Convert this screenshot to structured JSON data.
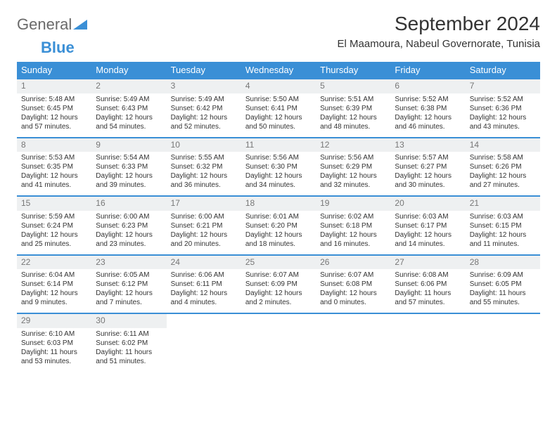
{
  "brand": {
    "name_part1": "General",
    "name_part2": "Blue",
    "logo_color": "#3a8fd6",
    "text_color": "#6a6a6a"
  },
  "title": "September 2024",
  "location": "El Maamoura, Nabeul Governorate, Tunisia",
  "weekdays": [
    "Sunday",
    "Monday",
    "Tuesday",
    "Wednesday",
    "Thursday",
    "Friday",
    "Saturday"
  ],
  "colors": {
    "header_bg": "#3a8fd6",
    "row_border": "#3a8fd6",
    "daynum_bg": "#eef0f1",
    "daynum_color": "#777777",
    "body_text": "#333333",
    "page_bg": "#ffffff"
  },
  "fonts": {
    "month_title_pt": 28,
    "location_pt": 15,
    "weekday_pt": 13,
    "daynum_pt": 12,
    "cell_pt": 10
  },
  "days": [
    {
      "n": "1",
      "sunrise": "5:48 AM",
      "sunset": "6:45 PM",
      "daylight": "12 hours and 57 minutes."
    },
    {
      "n": "2",
      "sunrise": "5:49 AM",
      "sunset": "6:43 PM",
      "daylight": "12 hours and 54 minutes."
    },
    {
      "n": "3",
      "sunrise": "5:49 AM",
      "sunset": "6:42 PM",
      "daylight": "12 hours and 52 minutes."
    },
    {
      "n": "4",
      "sunrise": "5:50 AM",
      "sunset": "6:41 PM",
      "daylight": "12 hours and 50 minutes."
    },
    {
      "n": "5",
      "sunrise": "5:51 AM",
      "sunset": "6:39 PM",
      "daylight": "12 hours and 48 minutes."
    },
    {
      "n": "6",
      "sunrise": "5:52 AM",
      "sunset": "6:38 PM",
      "daylight": "12 hours and 46 minutes."
    },
    {
      "n": "7",
      "sunrise": "5:52 AM",
      "sunset": "6:36 PM",
      "daylight": "12 hours and 43 minutes."
    },
    {
      "n": "8",
      "sunrise": "5:53 AM",
      "sunset": "6:35 PM",
      "daylight": "12 hours and 41 minutes."
    },
    {
      "n": "9",
      "sunrise": "5:54 AM",
      "sunset": "6:33 PM",
      "daylight": "12 hours and 39 minutes."
    },
    {
      "n": "10",
      "sunrise": "5:55 AM",
      "sunset": "6:32 PM",
      "daylight": "12 hours and 36 minutes."
    },
    {
      "n": "11",
      "sunrise": "5:56 AM",
      "sunset": "6:30 PM",
      "daylight": "12 hours and 34 minutes."
    },
    {
      "n": "12",
      "sunrise": "5:56 AM",
      "sunset": "6:29 PM",
      "daylight": "12 hours and 32 minutes."
    },
    {
      "n": "13",
      "sunrise": "5:57 AM",
      "sunset": "6:27 PM",
      "daylight": "12 hours and 30 minutes."
    },
    {
      "n": "14",
      "sunrise": "5:58 AM",
      "sunset": "6:26 PM",
      "daylight": "12 hours and 27 minutes."
    },
    {
      "n": "15",
      "sunrise": "5:59 AM",
      "sunset": "6:24 PM",
      "daylight": "12 hours and 25 minutes."
    },
    {
      "n": "16",
      "sunrise": "6:00 AM",
      "sunset": "6:23 PM",
      "daylight": "12 hours and 23 minutes."
    },
    {
      "n": "17",
      "sunrise": "6:00 AM",
      "sunset": "6:21 PM",
      "daylight": "12 hours and 20 minutes."
    },
    {
      "n": "18",
      "sunrise": "6:01 AM",
      "sunset": "6:20 PM",
      "daylight": "12 hours and 18 minutes."
    },
    {
      "n": "19",
      "sunrise": "6:02 AM",
      "sunset": "6:18 PM",
      "daylight": "12 hours and 16 minutes."
    },
    {
      "n": "20",
      "sunrise": "6:03 AM",
      "sunset": "6:17 PM",
      "daylight": "12 hours and 14 minutes."
    },
    {
      "n": "21",
      "sunrise": "6:03 AM",
      "sunset": "6:15 PM",
      "daylight": "12 hours and 11 minutes."
    },
    {
      "n": "22",
      "sunrise": "6:04 AM",
      "sunset": "6:14 PM",
      "daylight": "12 hours and 9 minutes."
    },
    {
      "n": "23",
      "sunrise": "6:05 AM",
      "sunset": "6:12 PM",
      "daylight": "12 hours and 7 minutes."
    },
    {
      "n": "24",
      "sunrise": "6:06 AM",
      "sunset": "6:11 PM",
      "daylight": "12 hours and 4 minutes."
    },
    {
      "n": "25",
      "sunrise": "6:07 AM",
      "sunset": "6:09 PM",
      "daylight": "12 hours and 2 minutes."
    },
    {
      "n": "26",
      "sunrise": "6:07 AM",
      "sunset": "6:08 PM",
      "daylight": "12 hours and 0 minutes."
    },
    {
      "n": "27",
      "sunrise": "6:08 AM",
      "sunset": "6:06 PM",
      "daylight": "11 hours and 57 minutes."
    },
    {
      "n": "28",
      "sunrise": "6:09 AM",
      "sunset": "6:05 PM",
      "daylight": "11 hours and 55 minutes."
    },
    {
      "n": "29",
      "sunrise": "6:10 AM",
      "sunset": "6:03 PM",
      "daylight": "11 hours and 53 minutes."
    },
    {
      "n": "30",
      "sunrise": "6:11 AM",
      "sunset": "6:02 PM",
      "daylight": "11 hours and 51 minutes."
    }
  ],
  "labels": {
    "sunrise": "Sunrise:",
    "sunset": "Sunset:",
    "daylight": "Daylight:"
  }
}
